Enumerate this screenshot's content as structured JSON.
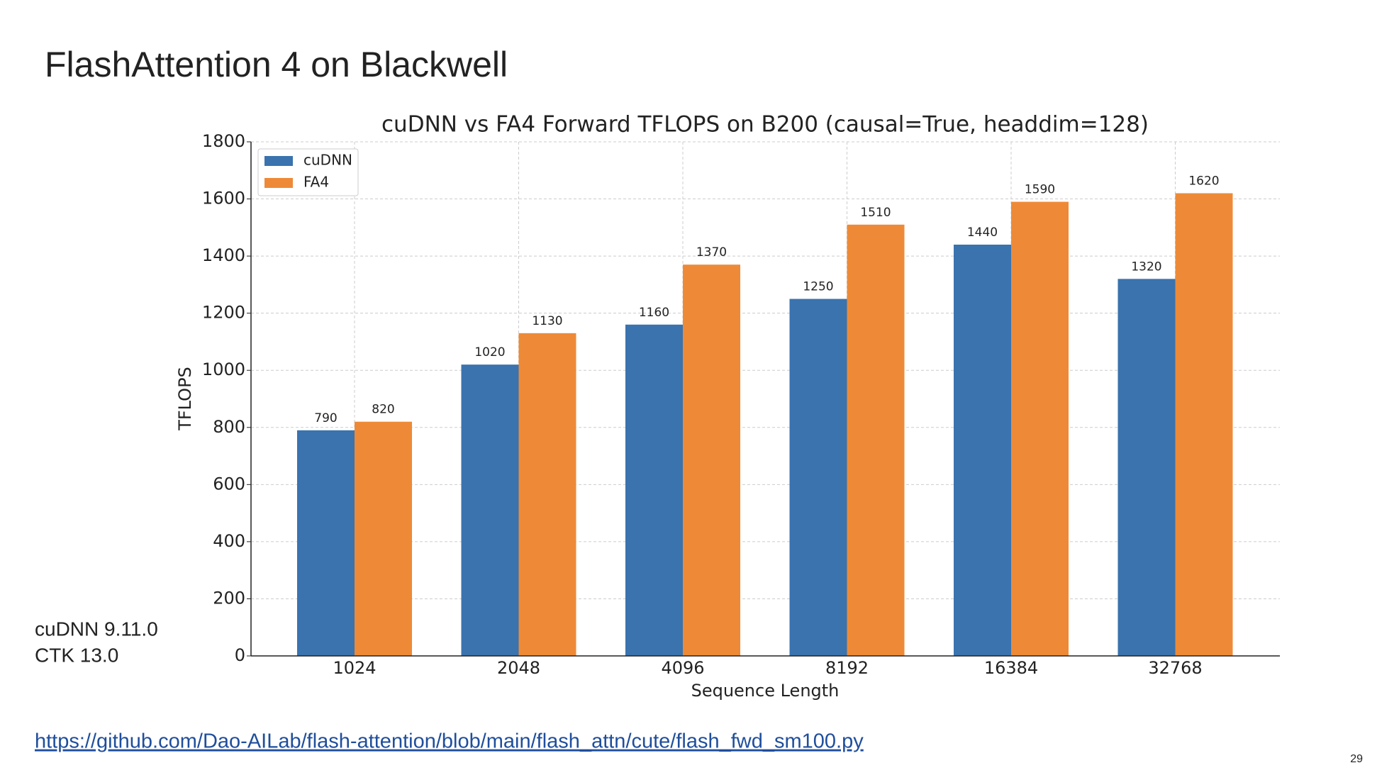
{
  "slide": {
    "title": "FlashAttention 4 on Blackwell",
    "notes": [
      "cuDNN 9.11.0",
      "CTK 13.0"
    ],
    "link": "https://github.com/Dao-AILab/flash-attention/blob/main/flash_attn/cute/flash_fwd_sm100.py",
    "page_number": "29"
  },
  "chart_data": {
    "type": "bar",
    "title": "cuDNN vs FA4 Forward TFLOPS on B200 (causal=True, headdim=128)",
    "x_label": "Sequence Length",
    "y_label": "TFLOPS",
    "categories": [
      "1024",
      "2048",
      "4096",
      "8192",
      "16384",
      "32768"
    ],
    "series": [
      {
        "name": "cuDNN",
        "color": "#3a73ae",
        "values": [
          790,
          1020,
          1160,
          1250,
          1440,
          1320
        ]
      },
      {
        "name": "FA4",
        "color": "#ee8a37",
        "values": [
          820,
          1130,
          1370,
          1510,
          1590,
          1620
        ]
      }
    ],
    "ylim": [
      0,
      1800
    ],
    "yticks": [
      0,
      200,
      400,
      600,
      800,
      1000,
      1200,
      1400,
      1600,
      1800
    ],
    "grid": true,
    "legend": "upper left"
  }
}
